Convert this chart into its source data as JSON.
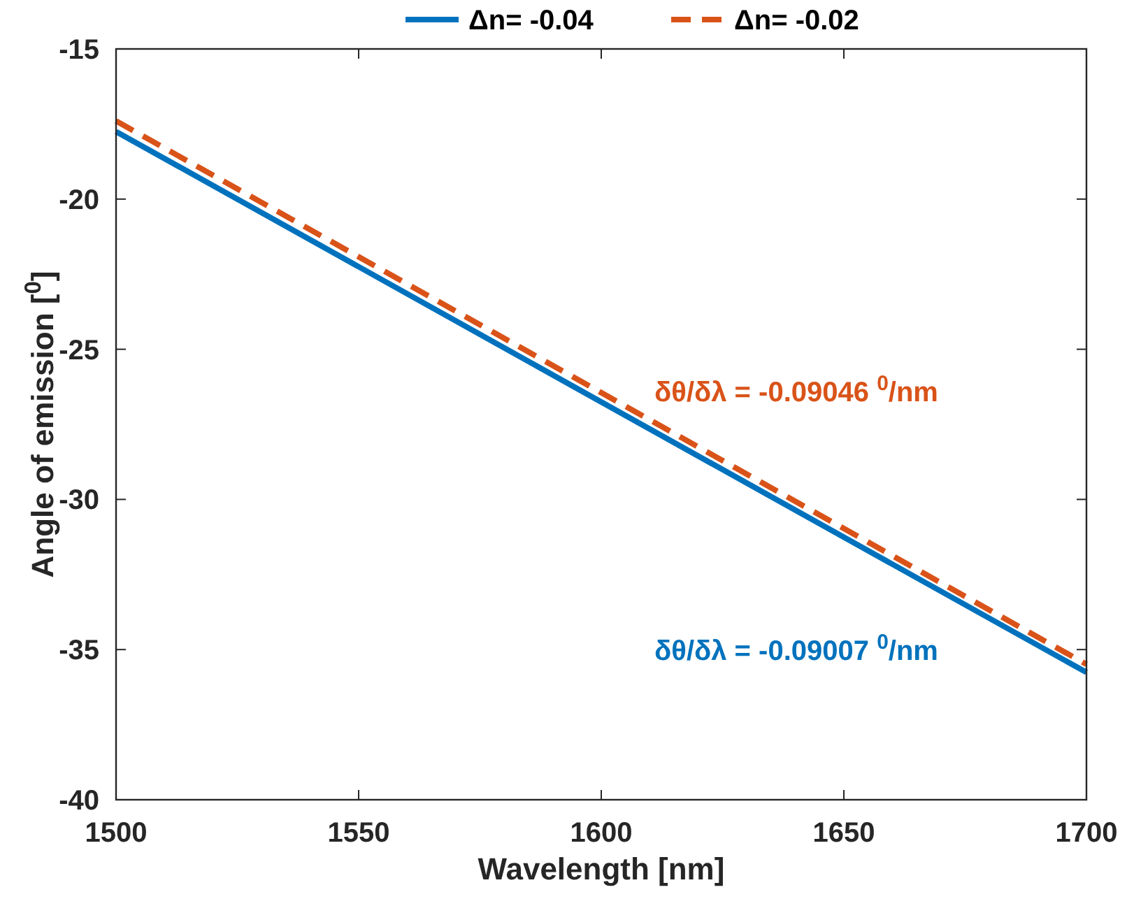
{
  "chart_data": {
    "type": "line",
    "xlabel": "Wavelength [nm]",
    "ylabel": "Angle of emission [$^{0}$]",
    "x": [
      1500,
      1700
    ],
    "series": [
      {
        "name": "Δn= -0.04",
        "color": "#0072bd",
        "values": [
          -17.75,
          -35.76
        ],
        "line_style": "solid"
      },
      {
        "name": "Δn= -0.02",
        "color": "#d95319",
        "values": [
          -17.4,
          -35.49
        ],
        "line_style": "dashed"
      }
    ],
    "xlim": [
      1500,
      1700
    ],
    "xticks": [
      1500,
      1550,
      1600,
      1650,
      1700
    ],
    "ylim": [
      -40,
      -15
    ],
    "yticks": [
      -40,
      -35,
      -30,
      -25,
      -20,
      -15
    ],
    "grid": false,
    "legend": "top",
    "annotations": [
      "δθ/δλ = -0.09007 $^{0}$/nm",
      "δθ/δλ = -0.09046 $^{0}$/nm"
    ]
  }
}
